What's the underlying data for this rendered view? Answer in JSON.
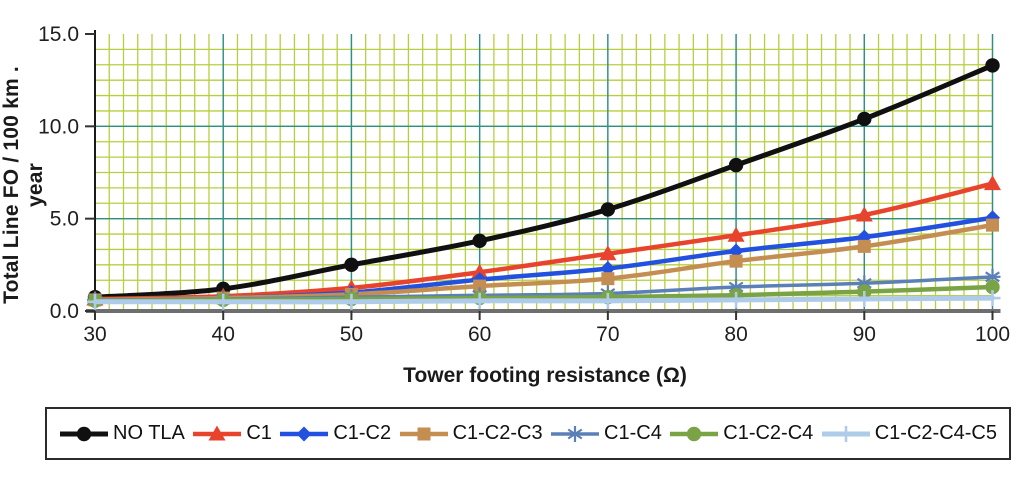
{
  "figure": {
    "background": "#ffffff"
  },
  "chart_data": {
    "type": "line",
    "title": "",
    "xlabel": "Tower footing resistance (Ω)",
    "ylabel": "Total Line FO / 100 km . year",
    "x": [
      30,
      40,
      50,
      60,
      70,
      80,
      90,
      100
    ],
    "xlim": [
      30,
      100
    ],
    "ylim": [
      0,
      15
    ],
    "y_ticks": [
      0,
      5,
      10,
      15
    ],
    "y_tick_labels": [
      "0.0",
      "5.0",
      "10.0",
      "15.0"
    ],
    "x_tick_labels": [
      "30",
      "40",
      "50",
      "60",
      "70",
      "80",
      "90",
      "100"
    ],
    "grid": {
      "minor_color": "#b6cf40",
      "major_color": "#2e8f85",
      "x_minor_divisions_per_major": 9,
      "y_minor_divisions_per_major": 6
    },
    "axis_colors": {
      "y_axis": "#1a1a1a",
      "x_axis": "#6e6e6e",
      "tick": "#333333"
    },
    "legend_position": "bottom",
    "smoothed_lines": true,
    "series": [
      {
        "name": "NO TLA",
        "color": "#101010",
        "marker": "circle",
        "line_width": 5,
        "values": [
          0.75,
          1.2,
          2.5,
          3.8,
          5.5,
          7.9,
          10.4,
          13.3
        ]
      },
      {
        "name": "C1",
        "color": "#e8432c",
        "marker": "triangle",
        "line_width": 4.5,
        "values": [
          0.65,
          0.8,
          1.25,
          2.1,
          3.1,
          4.1,
          5.2,
          6.9
        ]
      },
      {
        "name": "C1-C2",
        "color": "#2251e0",
        "marker": "diamond",
        "line_width": 4.5,
        "values": [
          0.6,
          0.7,
          1.0,
          1.7,
          2.3,
          3.25,
          4.0,
          5.05
        ]
      },
      {
        "name": "C1-C2-C3",
        "color": "#c48e52",
        "marker": "square",
        "line_width": 4.5,
        "values": [
          0.6,
          0.7,
          0.9,
          1.35,
          1.75,
          2.7,
          3.5,
          4.65
        ]
      },
      {
        "name": "C1-C4",
        "color": "#5b80b8",
        "marker": "asterisk",
        "line_width": 3.5,
        "values": [
          0.6,
          0.65,
          0.75,
          0.85,
          0.95,
          1.3,
          1.5,
          1.85
        ]
      },
      {
        "name": "C1-C2-C4",
        "color": "#7aa345",
        "marker": "circle",
        "line_width": 4.5,
        "values": [
          0.55,
          0.6,
          0.65,
          0.7,
          0.75,
          0.85,
          1.05,
          1.3
        ]
      },
      {
        "name": "C1-C2-C4-C5",
        "color": "#aecbe9",
        "marker": "plus",
        "line_width": 5,
        "values": [
          0.5,
          0.5,
          0.5,
          0.55,
          0.55,
          0.6,
          0.65,
          0.7
        ]
      }
    ]
  }
}
